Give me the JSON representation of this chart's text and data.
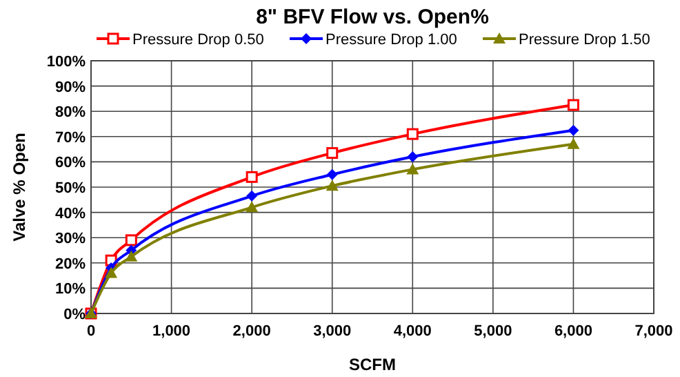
{
  "chart_data": {
    "type": "line",
    "title": "8\" BFV Flow vs. Open%",
    "xlabel": "SCFM",
    "ylabel": "Valve % Open",
    "xlim": [
      0,
      7000
    ],
    "xticks": [
      0,
      {
        "value": 1000,
        "label": "1,000"
      },
      {
        "value": 2000,
        "label": "2,000"
      },
      {
        "value": 3000,
        "label": "3,000"
      },
      {
        "value": 4000,
        "label": "4,000"
      },
      {
        "value": 5000,
        "label": "5,000"
      },
      {
        "value": 6000,
        "label": "6,000"
      },
      {
        "value": 7000,
        "label": "7,000"
      }
    ],
    "ylim": [
      0,
      100
    ],
    "yticks": [
      {
        "value": 0,
        "label": "0%"
      },
      {
        "value": 10,
        "label": "10%"
      },
      {
        "value": 20,
        "label": "20%"
      },
      {
        "value": 30,
        "label": "30%"
      },
      {
        "value": 40,
        "label": "40%"
      },
      {
        "value": 50,
        "label": "50%"
      },
      {
        "value": 60,
        "label": "60%"
      },
      {
        "value": 70,
        "label": "70%"
      },
      {
        "value": 80,
        "label": "80%"
      },
      {
        "value": 90,
        "label": "90%"
      },
      {
        "value": 100,
        "label": "100%"
      }
    ],
    "x": [
      0,
      250,
      500,
      2000,
      3000,
      4000,
      6000
    ],
    "grid": true,
    "legend": "top",
    "line_style": "solid",
    "series": [
      {
        "name": "Pressure Drop 0.50",
        "color": "#ff0000",
        "marker": "square",
        "values": [
          0,
          21,
          29,
          54,
          63.5,
          71,
          82.5
        ]
      },
      {
        "name": "Pressure Drop 1.00",
        "color": "#0000ff",
        "marker": "diamond",
        "values": [
          0,
          18,
          25,
          46.5,
          55,
          62,
          72.5
        ]
      },
      {
        "name": "Pressure Drop 1.50",
        "color": "#808000",
        "marker": "triangle",
        "values": [
          0,
          16,
          22.5,
          42,
          50.5,
          57,
          67
        ]
      }
    ]
  }
}
